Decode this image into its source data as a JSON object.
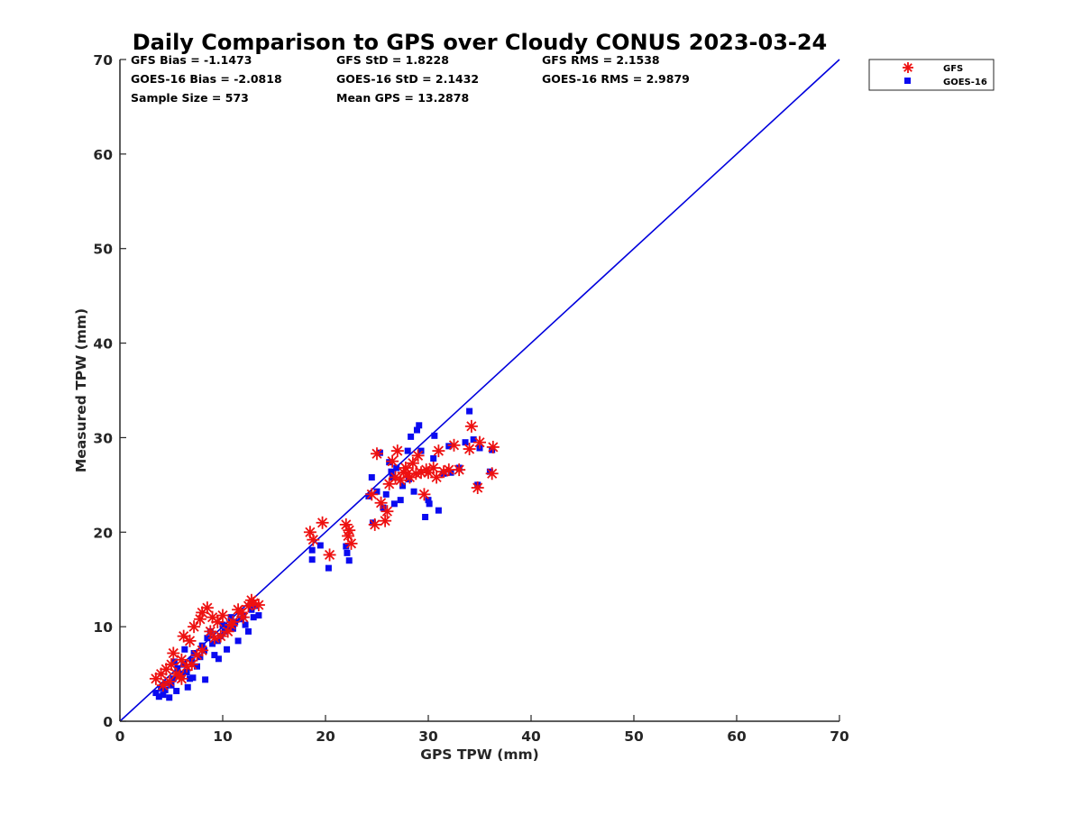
{
  "chart_data": {
    "type": "scatter",
    "title": "Daily Comparison to GPS over Cloudy CONUS 2023-03-24",
    "xlabel": "GPS TPW (mm)",
    "ylabel": "Measured TPW (mm)",
    "xlim": [
      0,
      70
    ],
    "ylim": [
      0,
      70
    ],
    "xticks": [
      "0",
      "10",
      "20",
      "30",
      "40",
      "50",
      "60",
      "70"
    ],
    "yticks": [
      "0",
      "10",
      "20",
      "30",
      "40",
      "50",
      "60",
      "70"
    ],
    "grid": false,
    "legend_position": "outside-top-right",
    "stats": [
      [
        "GFS Bias = -1.1473",
        "GFS StD = 1.8228",
        "GFS RMS = 2.1538"
      ],
      [
        "GOES-16 Bias = -2.0818",
        "GOES-16 StD = 2.1432",
        "GOES-16 RMS = 2.9879"
      ],
      [
        "Sample Size = 573",
        "Mean GPS = 13.2878",
        ""
      ]
    ],
    "reference_line": {
      "x": [
        0,
        70
      ],
      "y": [
        0,
        70
      ],
      "color": "#0000dd"
    },
    "series": [
      {
        "name": "GFS",
        "marker": "asterisk",
        "color": "#ee1111",
        "points": [
          [
            3.5,
            4.5
          ],
          [
            4.0,
            5.0
          ],
          [
            4.5,
            5.5
          ],
          [
            5.0,
            6.0
          ],
          [
            5.5,
            5.0
          ],
          [
            4.2,
            3.8
          ],
          [
            6.0,
            6.5
          ],
          [
            6.5,
            5.8
          ],
          [
            5.2,
            7.2
          ],
          [
            6.2,
            9.0
          ],
          [
            6.8,
            8.5
          ],
          [
            7.2,
            10.0
          ],
          [
            7.8,
            10.8
          ],
          [
            8.0,
            11.5
          ],
          [
            8.5,
            12.0
          ],
          [
            9.0,
            11.0
          ],
          [
            9.5,
            10.5
          ],
          [
            10.0,
            11.2
          ],
          [
            7.0,
            6.0
          ],
          [
            8.0,
            7.5
          ],
          [
            8.8,
            9.5
          ],
          [
            9.2,
            8.8
          ],
          [
            10.5,
            9.5
          ],
          [
            11.0,
            10.5
          ],
          [
            11.5,
            11.8
          ],
          [
            12.0,
            11.0
          ],
          [
            12.5,
            12.2
          ],
          [
            13.0,
            12.5
          ],
          [
            13.5,
            12.3
          ],
          [
            10.8,
            10.2
          ],
          [
            11.8,
            11.5
          ],
          [
            12.8,
            12.8
          ],
          [
            4.8,
            4.2
          ],
          [
            5.8,
            4.8
          ],
          [
            7.5,
            7.0
          ],
          [
            6.0,
            4.5
          ],
          [
            9.8,
            9.0
          ],
          [
            18.5,
            20.0
          ],
          [
            18.8,
            19.2
          ],
          [
            19.7,
            21.0
          ],
          [
            20.4,
            17.6
          ],
          [
            22.0,
            20.8
          ],
          [
            22.3,
            20.2
          ],
          [
            22.2,
            19.6
          ],
          [
            22.5,
            18.8
          ],
          [
            24.5,
            24.0
          ],
          [
            24.8,
            20.8
          ],
          [
            25.0,
            28.3
          ],
          [
            25.4,
            23.1
          ],
          [
            25.8,
            21.2
          ],
          [
            26.0,
            22.2
          ],
          [
            26.2,
            25.1
          ],
          [
            26.5,
            27.5
          ],
          [
            26.8,
            25.8
          ],
          [
            27.0,
            28.6
          ],
          [
            27.3,
            25.5
          ],
          [
            27.6,
            26.3
          ],
          [
            28.0,
            26.2
          ],
          [
            28.2,
            25.8
          ],
          [
            28.5,
            27.3
          ],
          [
            28.8,
            26.2
          ],
          [
            29.0,
            28.1
          ],
          [
            29.3,
            26.3
          ],
          [
            29.6,
            24.0
          ],
          [
            30.0,
            26.3
          ],
          [
            30.5,
            26.8
          ],
          [
            30.8,
            25.8
          ],
          [
            31.0,
            28.6
          ],
          [
            31.5,
            26.4
          ],
          [
            32.0,
            26.6
          ],
          [
            32.5,
            29.2
          ],
          [
            33.0,
            26.6
          ],
          [
            34.0,
            28.8
          ],
          [
            34.2,
            31.2
          ],
          [
            34.8,
            24.7
          ],
          [
            35.0,
            29.5
          ],
          [
            36.2,
            26.2
          ],
          [
            36.3,
            29.0
          ],
          [
            27.8,
            26.8
          ],
          [
            29.8,
            26.6
          ]
        ]
      },
      {
        "name": "GOES-16",
        "marker": "square",
        "color": "#0a0af0",
        "points": [
          [
            3.5,
            3.0
          ],
          [
            3.8,
            2.6
          ],
          [
            4.0,
            3.5
          ],
          [
            4.2,
            2.8
          ],
          [
            4.5,
            4.0
          ],
          [
            4.8,
            2.5
          ],
          [
            5.0,
            3.8
          ],
          [
            5.2,
            4.5
          ],
          [
            5.5,
            3.2
          ],
          [
            5.8,
            5.0
          ],
          [
            6.0,
            4.8
          ],
          [
            6.2,
            6.0
          ],
          [
            6.5,
            5.2
          ],
          [
            6.8,
            4.5
          ],
          [
            7.0,
            6.5
          ],
          [
            7.2,
            7.2
          ],
          [
            7.5,
            5.8
          ],
          [
            7.8,
            6.8
          ],
          [
            8.0,
            8.0
          ],
          [
            8.2,
            7.5
          ],
          [
            8.5,
            8.8
          ],
          [
            8.8,
            9.5
          ],
          [
            9.0,
            8.2
          ],
          [
            9.2,
            7.0
          ],
          [
            9.5,
            8.5
          ],
          [
            9.8,
            9.0
          ],
          [
            10.0,
            10.2
          ],
          [
            10.2,
            9.5
          ],
          [
            10.5,
            10.0
          ],
          [
            10.8,
            11.0
          ],
          [
            11.0,
            9.8
          ],
          [
            11.2,
            10.5
          ],
          [
            11.5,
            8.5
          ],
          [
            11.8,
            10.8
          ],
          [
            12.0,
            11.2
          ],
          [
            12.2,
            10.2
          ],
          [
            12.5,
            9.5
          ],
          [
            12.8,
            11.8
          ],
          [
            13.0,
            11.0
          ],
          [
            13.2,
            12.2
          ],
          [
            13.5,
            11.2
          ],
          [
            6.3,
            7.6
          ],
          [
            7.1,
            4.6
          ],
          [
            8.3,
            4.4
          ],
          [
            9.6,
            6.6
          ],
          [
            5.3,
            6.3
          ],
          [
            6.6,
            3.6
          ],
          [
            4.4,
            3.3
          ],
          [
            10.4,
            7.6
          ],
          [
            5.6,
            5.6
          ],
          [
            18.7,
            18.1
          ],
          [
            18.7,
            17.1
          ],
          [
            19.5,
            18.6
          ],
          [
            20.3,
            16.2
          ],
          [
            22.0,
            18.5
          ],
          [
            22.1,
            17.8
          ],
          [
            22.3,
            17.0
          ],
          [
            24.2,
            23.8
          ],
          [
            24.5,
            25.8
          ],
          [
            24.6,
            21.0
          ],
          [
            25.0,
            24.3
          ],
          [
            25.3,
            28.4
          ],
          [
            25.6,
            22.6
          ],
          [
            25.9,
            24.0
          ],
          [
            26.2,
            27.4
          ],
          [
            26.5,
            25.8
          ],
          [
            26.7,
            23.0
          ],
          [
            26.9,
            26.8
          ],
          [
            27.3,
            23.4
          ],
          [
            27.5,
            24.9
          ],
          [
            28.0,
            28.6
          ],
          [
            28.3,
            30.1
          ],
          [
            28.6,
            24.3
          ],
          [
            28.9,
            30.8
          ],
          [
            29.1,
            31.3
          ],
          [
            29.3,
            28.6
          ],
          [
            29.7,
            21.6
          ],
          [
            30.0,
            23.4
          ],
          [
            30.1,
            23.0
          ],
          [
            30.5,
            27.8
          ],
          [
            30.6,
            30.2
          ],
          [
            31.0,
            22.3
          ],
          [
            31.5,
            26.2
          ],
          [
            32.0,
            29.1
          ],
          [
            32.2,
            26.3
          ],
          [
            33.0,
            26.8
          ],
          [
            33.6,
            29.5
          ],
          [
            34.0,
            32.8
          ],
          [
            34.4,
            29.8
          ],
          [
            34.8,
            25.0
          ],
          [
            35.0,
            28.9
          ],
          [
            36.0,
            26.4
          ],
          [
            36.2,
            28.7
          ],
          [
            26.4,
            26.4
          ],
          [
            28.1,
            25.6
          ]
        ]
      }
    ]
  }
}
